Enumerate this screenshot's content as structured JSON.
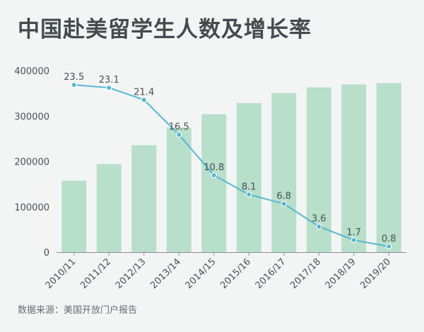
{
  "title": "中国赴美留学生人数及增长率",
  "source": "数据来源：美国开放门户报告",
  "colors": {
    "bar": "#b7dfca",
    "line": "#56b7d1",
    "background": "#f3f5f5",
    "text": "#4a4f52"
  },
  "chart_data": {
    "type": "bar",
    "categories": [
      "2010/11",
      "2011/12",
      "2012/13",
      "2013/14",
      "2014/15",
      "2015/16",
      "2016/17",
      "2017/18",
      "2018/19",
      "2019/20"
    ],
    "series": [
      {
        "type": "bar",
        "values": [
          157558,
          194029,
          235597,
          274439,
          304040,
          328547,
          350755,
          363341,
          369548,
          372532
        ]
      },
      {
        "type": "line",
        "values": [
          23.5,
          23.1,
          21.4,
          16.5,
          10.8,
          8.1,
          6.8,
          3.6,
          1.7,
          0.8
        ]
      }
    ],
    "y_ticks": [
      "0",
      "100000",
      "200000",
      "300000",
      "400000"
    ],
    "ylim": [
      0,
      400000
    ],
    "y2lim": [
      0,
      25.5
    ],
    "line_labels": [
      "23.5",
      "23.1",
      "21.4",
      "16.5",
      "10.8",
      "8.1",
      "6.8",
      "3.6",
      "1.7",
      "0.8"
    ],
    "grid": false,
    "legend": "none"
  }
}
